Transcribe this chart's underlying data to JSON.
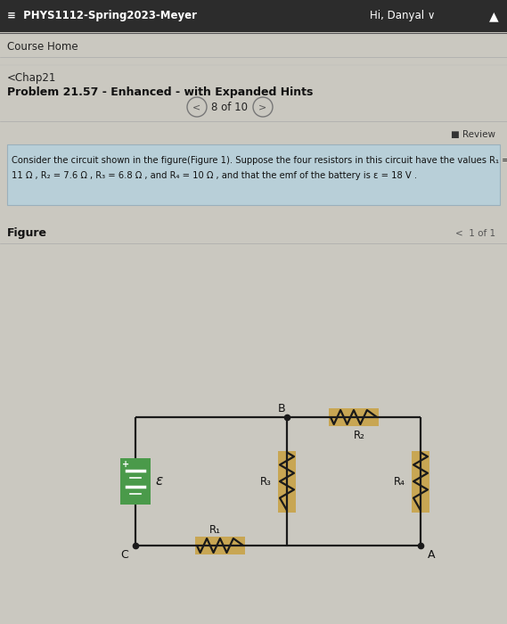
{
  "bg_color": "#cac8c0",
  "header_bg": "#2c2c2c",
  "header_text": "≡  PHYS1112-Spring2023-Meyer",
  "header_right": "Hi, Danyal ∨",
  "header_bell": "▲",
  "course_home": "Course Home",
  "chap": "<Chap21",
  "problem_title": "Problem 21.57 - Enhanced - with Expanded Hints",
  "nav_text": "8 of 10",
  "review_text": "■ Review",
  "problem_text_line1": "Consider the circuit shown in the figure(Figure 1). Suppose the four resistors in this circuit have the values R₁ =",
  "problem_text_line2": "11 Ω , R₂ = 7.6 Ω , R₃ = 6.8 Ω , and R₄ = 10 Ω , and that the emf of the battery is ε = 18 V .",
  "problem_box_bg": "#b8cfd8",
  "figure_label": "Figure",
  "figure_nav": "<  1 of 1",
  "node_B_label": "B",
  "node_A_label": "A",
  "node_C_label": "C",
  "R1_label": "R₁",
  "R2_label": "R₂",
  "R3_label": "R₃",
  "R4_label": "R₄",
  "emf_label": "ε",
  "battery_bg": "#4a9a4a",
  "resistor_highlight": "#c8a040",
  "wire_color": "#1a1a1a",
  "line_color": "#888888"
}
